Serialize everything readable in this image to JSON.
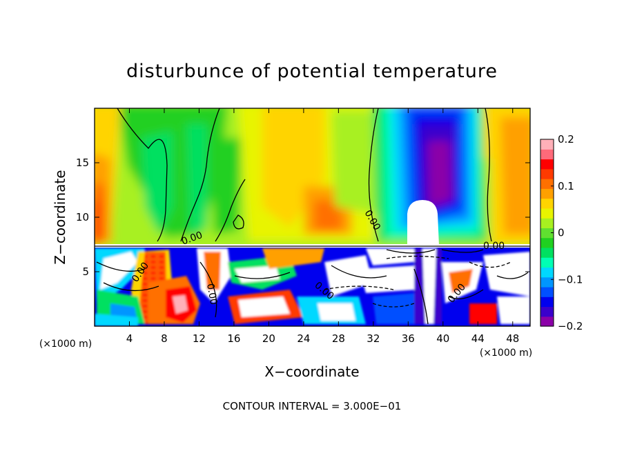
{
  "chart_data": {
    "type": "heatmap",
    "title": "disturbunce of potential temperature",
    "xlabel": "X−coordinate",
    "ylabel": "Z−coordinate",
    "x_unit_left": "(×1000 m)",
    "x_unit_right": "(×1000 m)",
    "xlim": [
      0,
      50
    ],
    "ylim": [
      0,
      20
    ],
    "x_ticks": [
      4,
      8,
      12,
      16,
      20,
      24,
      28,
      32,
      36,
      40,
      44,
      48
    ],
    "y_ticks": [
      5,
      10,
      15
    ],
    "colorbar": {
      "min": -0.2,
      "max": 0.2,
      "tick_values": [
        0.2,
        0.1,
        0,
        -0.1,
        -0.2
      ],
      "tick_labels": [
        "0.2",
        "0.1",
        "0",
        "−0.1",
        "−0.2"
      ],
      "colors": [
        "#8b00a8",
        "#3a00cc",
        "#0000ee",
        "#0050ff",
        "#0096ff",
        "#00d8ff",
        "#00ffb4",
        "#00e060",
        "#20d020",
        "#60e030",
        "#a8f020",
        "#e8f400",
        "#ffd400",
        "#ffa000",
        "#ff7000",
        "#ff3a00",
        "#ff0000",
        "#ff6a7a",
        "#ffb0b8"
      ]
    },
    "contour_interval_text": "CONTOUR INTERVAL = 3.000E−01",
    "contour_labels": [
      "0.00",
      "0.00",
      "0.00",
      "0.00",
      "0.00",
      "0.00",
      "0.00"
    ],
    "features": [
      {
        "name": "strong negative anomaly (upper right)",
        "x_center": 39.5,
        "z_center": 14.5,
        "value": -0.2
      },
      {
        "name": "positive anomaly (left edge)",
        "x_center": 0.5,
        "z_center": 10.5,
        "value": 0.15
      },
      {
        "name": "positive anomaly (center)",
        "x_center": 26,
        "z_center": 10,
        "value": 0.08
      },
      {
        "name": "warm band (lower left)",
        "x_center": 10,
        "z_center": 3,
        "value": 0.2
      }
    ]
  }
}
